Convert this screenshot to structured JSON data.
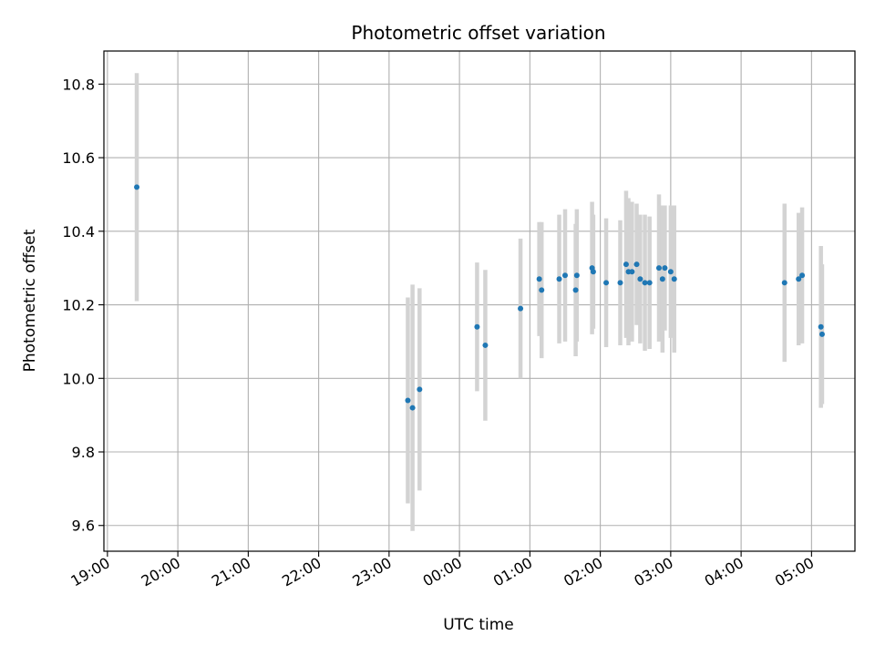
{
  "chart_data": {
    "type": "scatter",
    "title": "Photometric offset variation",
    "xlabel": "UTC time",
    "ylabel": "Photometric offset",
    "xlim": [
      "18:57",
      "05:37"
    ],
    "ylim": [
      9.53,
      10.89
    ],
    "grid": true,
    "x_ticks": [
      "19:00",
      "20:00",
      "21:00",
      "22:00",
      "23:00",
      "00:00",
      "01:00",
      "02:00",
      "03:00",
      "04:00",
      "05:00"
    ],
    "y_ticks": [
      "9.6",
      "9.8",
      "10.0",
      "10.2",
      "10.4",
      "10.6",
      "10.8"
    ],
    "colors": {
      "point": "#1f77b4",
      "errorbar": "#d3d3d3",
      "grid": "#b0b0b0"
    },
    "series": [
      {
        "points": [
          {
            "x": "19:25",
            "y": 10.52,
            "err": 0.31
          },
          {
            "x": "23:16",
            "y": 9.94,
            "err": 0.28
          },
          {
            "x": "23:20",
            "y": 9.92,
            "err": 0.335
          },
          {
            "x": "23:26",
            "y": 9.97,
            "err": 0.275
          },
          {
            "x": "00:15",
            "y": 10.14,
            "err": 0.175
          },
          {
            "x": "00:22",
            "y": 10.09,
            "err": 0.205
          },
          {
            "x": "00:52",
            "y": 10.19,
            "err": 0.19
          },
          {
            "x": "01:08",
            "y": 10.27,
            "err": 0.155
          },
          {
            "x": "01:10",
            "y": 10.24,
            "err": 0.185
          },
          {
            "x": "01:25",
            "y": 10.27,
            "err": 0.175
          },
          {
            "x": "01:30",
            "y": 10.28,
            "err": 0.18
          },
          {
            "x": "01:39",
            "y": 10.24,
            "err": 0.18
          },
          {
            "x": "01:40",
            "y": 10.28,
            "err": 0.18
          },
          {
            "x": "01:53",
            "y": 10.3,
            "err": 0.18
          },
          {
            "x": "01:54",
            "y": 10.29,
            "err": 0.155
          },
          {
            "x": "02:05",
            "y": 10.26,
            "err": 0.175
          },
          {
            "x": "02:17",
            "y": 10.26,
            "err": 0.17
          },
          {
            "x": "02:22",
            "y": 10.31,
            "err": 0.2
          },
          {
            "x": "02:24",
            "y": 10.29,
            "err": 0.2
          },
          {
            "x": "02:27",
            "y": 10.29,
            "err": 0.19
          },
          {
            "x": "02:31",
            "y": 10.31,
            "err": 0.165
          },
          {
            "x": "02:34",
            "y": 10.27,
            "err": 0.175
          },
          {
            "x": "02:38",
            "y": 10.26,
            "err": 0.185
          },
          {
            "x": "02:42",
            "y": 10.26,
            "err": 0.18
          },
          {
            "x": "02:50",
            "y": 10.3,
            "err": 0.2
          },
          {
            "x": "02:53",
            "y": 10.27,
            "err": 0.2
          },
          {
            "x": "02:55",
            "y": 10.3,
            "err": 0.17
          },
          {
            "x": "03:00",
            "y": 10.29,
            "err": 0.18
          },
          {
            "x": "03:03",
            "y": 10.27,
            "err": 0.2
          },
          {
            "x": "04:37",
            "y": 10.26,
            "err": 0.215
          },
          {
            "x": "04:49",
            "y": 10.27,
            "err": 0.18
          },
          {
            "x": "04:52",
            "y": 10.28,
            "err": 0.185
          },
          {
            "x": "05:08",
            "y": 10.14,
            "err": 0.22
          },
          {
            "x": "05:09",
            "y": 10.12,
            "err": 0.19
          }
        ]
      }
    ]
  }
}
